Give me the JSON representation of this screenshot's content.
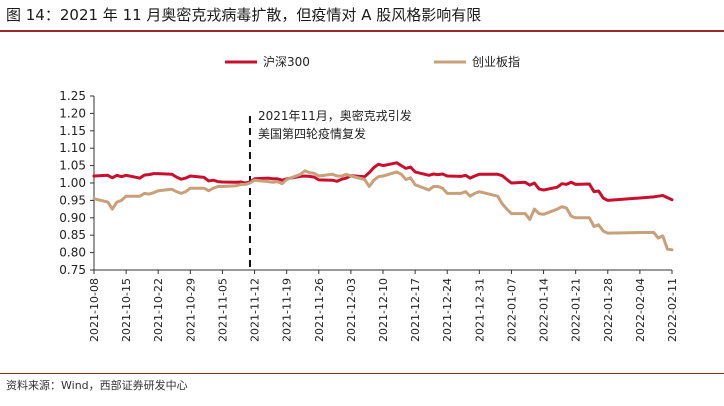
{
  "title": "图 14：2021 年 11 月奥密克戎病毒扩散，但疫情对 A 股风格影响有限",
  "source": "资料来源：Wind，西部证券研发中心",
  "chart_data": {
    "type": "line",
    "title": "",
    "xlabel": "",
    "ylabel": "",
    "ylim": [
      0.75,
      1.25
    ],
    "yticks": [
      "1.25",
      "1.20",
      "1.15",
      "1.10",
      "1.05",
      "1.00",
      "0.95",
      "0.90",
      "0.85",
      "0.80",
      "0.75"
    ],
    "xlim": [
      "2021-10-08",
      "2022-02-11"
    ],
    "xticks": [
      "2021-10-08",
      "2021-10-15",
      "2021-10-22",
      "2021-10-29",
      "2021-11-05",
      "2021-11-12",
      "2021-11-19",
      "2021-11-26",
      "2021-12-03",
      "2021-12-10",
      "2021-12-17",
      "2021-12-24",
      "2021-12-31",
      "2022-01-07",
      "2022-01-14",
      "2022-01-21",
      "2022-01-28",
      "2022-02-04",
      "2022-02-11"
    ],
    "legend_position": "top",
    "grid": false,
    "annotation": {
      "date": "2021-11-11",
      "lines": [
        "2021年11月，奥密克戎引发",
        "美国第四轮疫情复发"
      ]
    },
    "series": [
      {
        "name": "沪深300",
        "color": "#c8102e",
        "points": [
          [
            "2021-10-08",
            1.02
          ],
          [
            "2021-10-11",
            1.022
          ],
          [
            "2021-10-12",
            1.015
          ],
          [
            "2021-10-13",
            1.022
          ],
          [
            "2021-10-14",
            1.018
          ],
          [
            "2021-10-15",
            1.022
          ],
          [
            "2021-10-18",
            1.014
          ],
          [
            "2021-10-19",
            1.023
          ],
          [
            "2021-10-20",
            1.024
          ],
          [
            "2021-10-21",
            1.027
          ],
          [
            "2021-10-22",
            1.027
          ],
          [
            "2021-10-25",
            1.025
          ],
          [
            "2021-10-26",
            1.017
          ],
          [
            "2021-10-27",
            1.011
          ],
          [
            "2021-10-28",
            1.014
          ],
          [
            "2021-10-29",
            1.02
          ],
          [
            "2021-11-01",
            1.016
          ],
          [
            "2021-11-02",
            1.006
          ],
          [
            "2021-11-03",
            1.008
          ],
          [
            "2021-11-04",
            1.004
          ],
          [
            "2021-11-05",
            1.003
          ],
          [
            "2021-11-08",
            1.002
          ],
          [
            "2021-11-09",
            1.003
          ],
          [
            "2021-11-10",
            1.0
          ],
          [
            "2021-11-11",
            1.003
          ],
          [
            "2021-11-12",
            1.012
          ],
          [
            "2021-11-15",
            1.014
          ],
          [
            "2021-11-16",
            1.012
          ],
          [
            "2021-11-17",
            1.012
          ],
          [
            "2021-11-18",
            1.008
          ],
          [
            "2021-11-19",
            1.012
          ],
          [
            "2021-11-22",
            1.019
          ],
          [
            "2021-11-23",
            1.02
          ],
          [
            "2021-11-24",
            1.019
          ],
          [
            "2021-11-25",
            1.017
          ],
          [
            "2021-11-26",
            1.009
          ],
          [
            "2021-11-29",
            1.008
          ],
          [
            "2021-11-30",
            1.005
          ],
          [
            "2021-12-01",
            1.011
          ],
          [
            "2021-12-02",
            1.014
          ],
          [
            "2021-12-03",
            1.021
          ],
          [
            "2021-12-06",
            1.018
          ],
          [
            "2021-12-07",
            1.03
          ],
          [
            "2021-12-08",
            1.044
          ],
          [
            "2021-12-09",
            1.054
          ],
          [
            "2021-12-10",
            1.05
          ],
          [
            "2021-12-13",
            1.058
          ],
          [
            "2021-12-14",
            1.05
          ],
          [
            "2021-12-15",
            1.042
          ],
          [
            "2021-12-16",
            1.046
          ],
          [
            "2021-12-17",
            1.032
          ],
          [
            "2021-12-20",
            1.022
          ],
          [
            "2021-12-21",
            1.026
          ],
          [
            "2021-12-22",
            1.024
          ],
          [
            "2021-12-23",
            1.026
          ],
          [
            "2021-12-24",
            1.02
          ],
          [
            "2021-12-27",
            1.019
          ],
          [
            "2021-12-28",
            1.022
          ],
          [
            "2021-12-29",
            1.014
          ],
          [
            "2021-12-30",
            1.02
          ],
          [
            "2021-12-31",
            1.025
          ],
          [
            "2022-01-04",
            1.025
          ],
          [
            "2022-01-05",
            1.021
          ],
          [
            "2022-01-06",
            1.01
          ],
          [
            "2022-01-07",
            1.0
          ],
          [
            "2022-01-10",
            1.002
          ],
          [
            "2022-01-11",
            0.994
          ],
          [
            "2022-01-12",
            1.0
          ],
          [
            "2022-01-13",
            0.983
          ],
          [
            "2022-01-14",
            0.98
          ],
          [
            "2022-01-17",
            0.988
          ],
          [
            "2022-01-18",
            0.998
          ],
          [
            "2022-01-19",
            0.996
          ],
          [
            "2022-01-20",
            1.002
          ],
          [
            "2022-01-21",
            0.996
          ],
          [
            "2022-01-24",
            0.997
          ],
          [
            "2022-01-25",
            0.975
          ],
          [
            "2022-01-26",
            0.977
          ],
          [
            "2022-01-27",
            0.957
          ],
          [
            "2022-01-28",
            0.95
          ],
          [
            "2022-02-07",
            0.96
          ],
          [
            "2022-02-08",
            0.962
          ],
          [
            "2022-02-09",
            0.964
          ],
          [
            "2022-02-10",
            0.958
          ],
          [
            "2022-02-11",
            0.952
          ]
        ]
      },
      {
        "name": "创业板指",
        "color": "#c8a07a",
        "points": [
          [
            "2021-10-08",
            0.955
          ],
          [
            "2021-10-11",
            0.945
          ],
          [
            "2021-10-12",
            0.925
          ],
          [
            "2021-10-13",
            0.945
          ],
          [
            "2021-10-14",
            0.95
          ],
          [
            "2021-10-15",
            0.962
          ],
          [
            "2021-10-18",
            0.962
          ],
          [
            "2021-10-19",
            0.97
          ],
          [
            "2021-10-20",
            0.968
          ],
          [
            "2021-10-21",
            0.972
          ],
          [
            "2021-10-22",
            0.978
          ],
          [
            "2021-10-25",
            0.982
          ],
          [
            "2021-10-26",
            0.975
          ],
          [
            "2021-10-27",
            0.97
          ],
          [
            "2021-10-28",
            0.975
          ],
          [
            "2021-10-29",
            0.985
          ],
          [
            "2021-11-01",
            0.985
          ],
          [
            "2021-11-02",
            0.978
          ],
          [
            "2021-11-03",
            0.985
          ],
          [
            "2021-11-04",
            0.99
          ],
          [
            "2021-11-05",
            0.99
          ],
          [
            "2021-11-08",
            0.992
          ],
          [
            "2021-11-09",
            0.996
          ],
          [
            "2021-11-10",
            0.996
          ],
          [
            "2021-11-11",
            1.0
          ],
          [
            "2021-11-12",
            1.008
          ],
          [
            "2021-11-15",
            1.004
          ],
          [
            "2021-11-16",
            1.002
          ],
          [
            "2021-11-17",
            1.004
          ],
          [
            "2021-11-18",
            0.998
          ],
          [
            "2021-11-19",
            1.01
          ],
          [
            "2021-11-22",
            1.025
          ],
          [
            "2021-11-23",
            1.035
          ],
          [
            "2021-11-24",
            1.03
          ],
          [
            "2021-11-25",
            1.028
          ],
          [
            "2021-11-26",
            1.02
          ],
          [
            "2021-11-29",
            1.025
          ],
          [
            "2021-11-30",
            1.02
          ],
          [
            "2021-12-01",
            1.02
          ],
          [
            "2021-12-02",
            1.025
          ],
          [
            "2021-12-03",
            1.02
          ],
          [
            "2021-12-06",
            1.01
          ],
          [
            "2021-12-07",
            0.99
          ],
          [
            "2021-12-08",
            1.008
          ],
          [
            "2021-12-09",
            1.018
          ],
          [
            "2021-12-10",
            1.02
          ],
          [
            "2021-12-13",
            1.032
          ],
          [
            "2021-12-14",
            1.025
          ],
          [
            "2021-12-15",
            1.01
          ],
          [
            "2021-12-16",
            1.015
          ],
          [
            "2021-12-17",
            0.995
          ],
          [
            "2021-12-20",
            0.98
          ],
          [
            "2021-12-21",
            0.99
          ],
          [
            "2021-12-22",
            0.99
          ],
          [
            "2021-12-23",
            0.985
          ],
          [
            "2021-12-24",
            0.97
          ],
          [
            "2021-12-27",
            0.97
          ],
          [
            "2021-12-28",
            0.975
          ],
          [
            "2021-12-29",
            0.962
          ],
          [
            "2021-12-30",
            0.97
          ],
          [
            "2021-12-31",
            0.975
          ],
          [
            "2022-01-04",
            0.962
          ],
          [
            "2022-01-05",
            0.94
          ],
          [
            "2022-01-06",
            0.925
          ],
          [
            "2022-01-07",
            0.912
          ],
          [
            "2022-01-10",
            0.912
          ],
          [
            "2022-01-11",
            0.895
          ],
          [
            "2022-01-12",
            0.925
          ],
          [
            "2022-01-13",
            0.912
          ],
          [
            "2022-01-14",
            0.91
          ],
          [
            "2022-01-17",
            0.925
          ],
          [
            "2022-01-18",
            0.932
          ],
          [
            "2022-01-19",
            0.928
          ],
          [
            "2022-01-20",
            0.905
          ],
          [
            "2022-01-21",
            0.9
          ],
          [
            "2022-01-24",
            0.9
          ],
          [
            "2022-01-25",
            0.875
          ],
          [
            "2022-01-26",
            0.88
          ],
          [
            "2022-01-27",
            0.862
          ],
          [
            "2022-01-28",
            0.856
          ],
          [
            "2022-02-07",
            0.858
          ],
          [
            "2022-02-08",
            0.842
          ],
          [
            "2022-02-09",
            0.848
          ],
          [
            "2022-02-10",
            0.81
          ],
          [
            "2022-02-11",
            0.808
          ]
        ]
      }
    ]
  }
}
